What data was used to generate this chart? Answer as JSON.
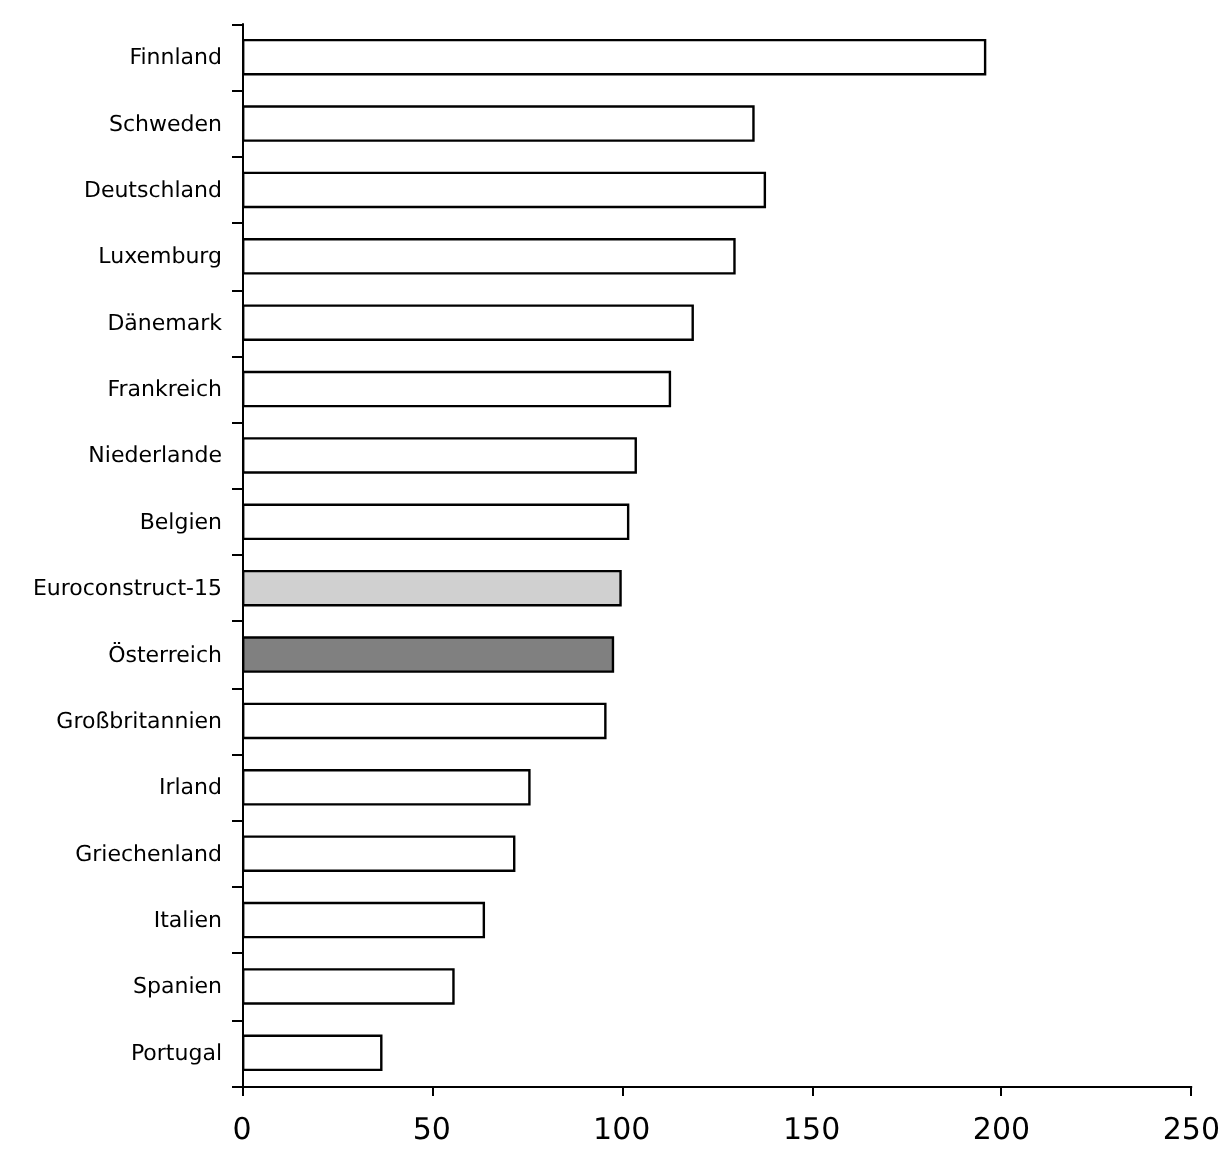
{
  "chart_data": {
    "type": "bar",
    "orientation": "horizontal",
    "categories": [
      "Finnland",
      "Schweden",
      "Deutschland",
      "Luxemburg",
      "Dänemark",
      "Frankreich",
      "Niederlande",
      "Belgien",
      "Euroconstruct-15",
      "Österreich",
      "Großbritannien",
      "Irland",
      "Griechenland",
      "Italien",
      "Spanien",
      "Portugal"
    ],
    "values": [
      196,
      135,
      138,
      130,
      119,
      113,
      104,
      102,
      100,
      98,
      96,
      76,
      72,
      64,
      56,
      37
    ],
    "colors": [
      "#ffffff",
      "#ffffff",
      "#ffffff",
      "#ffffff",
      "#ffffff",
      "#ffffff",
      "#ffffff",
      "#ffffff",
      "#d0d0d0",
      "#808080",
      "#ffffff",
      "#ffffff",
      "#ffffff",
      "#ffffff",
      "#ffffff",
      "#ffffff"
    ],
    "xlim": [
      0,
      250
    ],
    "xticks": [
      0,
      50,
      100,
      150,
      200,
      250
    ]
  }
}
